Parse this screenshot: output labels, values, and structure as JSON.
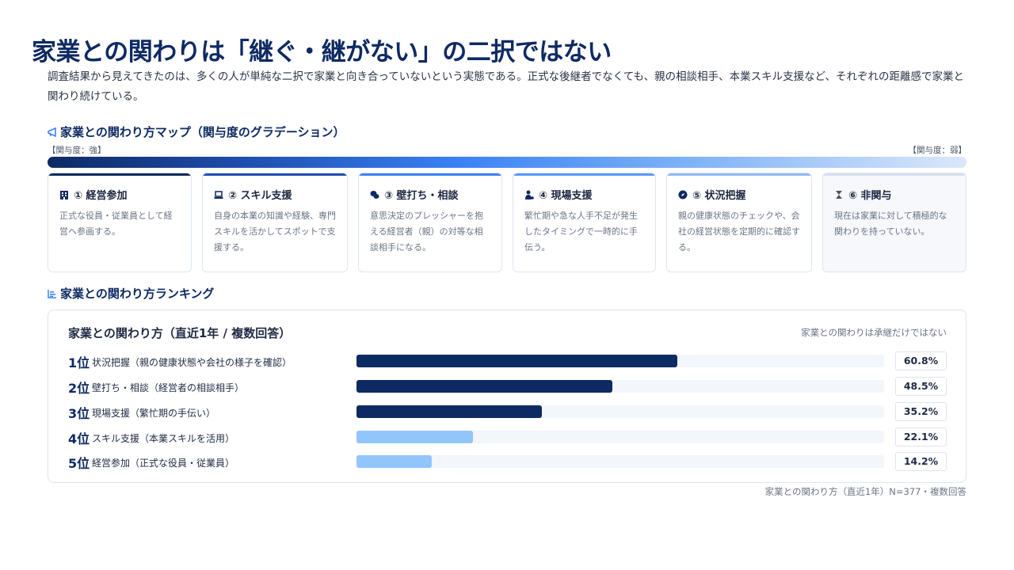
{
  "title": "家業との関わりは「継ぐ・継がない」の二択ではない",
  "lead": "調査結果から見えてきたのは、多くの人が単純な二択で家業と向き合っていないという実態である。正式な後継者でなくても、親の相談相手、本業スキル支援など、それぞれの距離感で家業と関わり続けている。",
  "map": {
    "heading": "家業との関わり方マップ（関与度のグラデーション）",
    "icon": "megaphone-icon",
    "left_label": "【関与度：強】",
    "right_label": "【関与度：弱】",
    "cards": [
      {
        "title": "① 経営参加",
        "icon": "building-icon",
        "accent": "#0e2a63",
        "desc": "正式な役員・従業員として経営へ参画する。"
      },
      {
        "title": "② スキル支援",
        "icon": "laptop-icon",
        "accent": "#1f4fb0",
        "desc": "自身の本業の知識や経験、専門スキルを活かしてスポットで支援する。"
      },
      {
        "title": "③ 壁打ち・相談",
        "icon": "chat-icon",
        "accent": "#3b82f6",
        "desc": "意思決定のプレッシャーを抱える経営者（親）の対等な相談相手になる。"
      },
      {
        "title": "④ 現場支援",
        "icon": "user-helper-icon",
        "accent": "#5a9af7",
        "desc": "繁忙期や急な人手不足が発生したタイミングで一時的に手伝う。"
      },
      {
        "title": "⑤ 状況把握",
        "icon": "compass-icon",
        "accent": "#8fbaf6",
        "desc": "親の健康状態のチェックや、会社の経営状態を定期的に確認する。"
      },
      {
        "title": "⑥ 非関与",
        "icon": "hourglass-icon",
        "accent": "#d5e0ee",
        "desc": "現在は家業に対して積極的な関わりを持っていない。"
      }
    ]
  },
  "ranking": {
    "heading": "家業との関わり方ランキング",
    "icon": "bar-chart-icon",
    "panel_title": "家業との関わり方（直近1年 / 複数回答）",
    "panel_note": "家業との関わりは承継だけではない",
    "footnote": "家業との関わり方（直近1年）N=377・複数回答",
    "colors": {
      "top": "#0e2a63",
      "other": "#93c5fd"
    }
  },
  "chart_data": {
    "type": "bar",
    "orientation": "horizontal",
    "title": "家業との関わり方（直近1年 / 複数回答）",
    "ranks": [
      "1位",
      "2位",
      "3位",
      "4位",
      "5位"
    ],
    "categories": [
      "状況把握（親の健康状態や会社の様子を確認）",
      "壁打ち・相談（経営者の相談相手）",
      "現場支援（繁忙期の手伝い）",
      "スキル支援（本業スキルを活用）",
      "経営参加（正式な役員・従業員）"
    ],
    "values": [
      60.8,
      48.5,
      35.2,
      22.1,
      14.2
    ],
    "value_labels": [
      "60.8%",
      "48.5%",
      "35.2%",
      "22.1%",
      "14.2%"
    ],
    "xlim": [
      0,
      100
    ],
    "highlight_count": 3,
    "grid": false
  }
}
